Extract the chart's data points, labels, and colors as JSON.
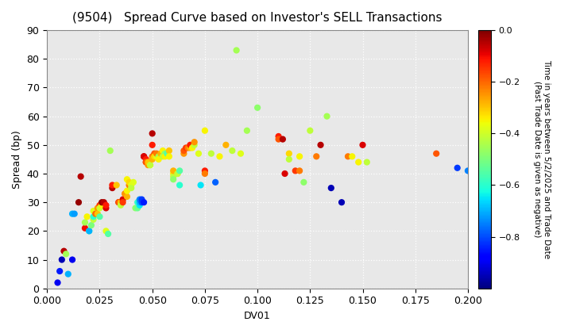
{
  "title": "(9504)   Spread Curve based on Investor's SELL Transactions",
  "xlabel": "DV01",
  "ylabel": "Spread (bp)",
  "xlim": [
    0.0,
    0.2
  ],
  "ylim": [
    0,
    90
  ],
  "xticks": [
    0.0,
    0.025,
    0.05,
    0.075,
    0.1,
    0.125,
    0.15,
    0.175,
    0.2
  ],
  "yticks": [
    0,
    10,
    20,
    30,
    40,
    50,
    60,
    70,
    80,
    90
  ],
  "colorbar_label_line1": "Time in years between 5/2/2025 and Trade Date",
  "colorbar_label_line2": "(Past Trade Date is given as negative)",
  "colorbar_vmin": -1.0,
  "colorbar_vmax": 0.0,
  "colorbar_ticks": [
    0.0,
    -0.2,
    -0.4,
    -0.6,
    -0.8
  ],
  "points": [
    [
      0.005,
      2,
      -0.9
    ],
    [
      0.006,
      6,
      -0.85
    ],
    [
      0.007,
      10,
      -0.95
    ],
    [
      0.008,
      13,
      -0.05
    ],
    [
      0.009,
      12,
      -0.45
    ],
    [
      0.01,
      5,
      -0.7
    ],
    [
      0.012,
      10,
      -0.9
    ],
    [
      0.012,
      26,
      -0.7
    ],
    [
      0.013,
      26,
      -0.72
    ],
    [
      0.015,
      30,
      -0.02
    ],
    [
      0.016,
      39,
      -0.05
    ],
    [
      0.018,
      21,
      -0.1
    ],
    [
      0.018,
      23,
      -0.45
    ],
    [
      0.019,
      25,
      -0.35
    ],
    [
      0.02,
      20,
      -0.55
    ],
    [
      0.02,
      20,
      -0.7
    ],
    [
      0.021,
      22,
      -0.5
    ],
    [
      0.022,
      24,
      -0.42
    ],
    [
      0.022,
      25,
      -0.6
    ],
    [
      0.022,
      27,
      -0.38
    ],
    [
      0.023,
      27,
      -0.38
    ],
    [
      0.023,
      26,
      -0.2
    ],
    [
      0.024,
      28,
      -0.25
    ],
    [
      0.024,
      26,
      -0.3
    ],
    [
      0.025,
      29,
      -0.15
    ],
    [
      0.025,
      28,
      -0.4
    ],
    [
      0.025,
      25,
      -0.55
    ],
    [
      0.026,
      29,
      -0.35
    ],
    [
      0.026,
      30,
      -0.02
    ],
    [
      0.027,
      30,
      -0.05
    ],
    [
      0.028,
      28,
      -0.08
    ],
    [
      0.028,
      29,
      -0.12
    ],
    [
      0.028,
      20,
      -0.38
    ],
    [
      0.029,
      19,
      -0.55
    ],
    [
      0.03,
      48,
      -0.45
    ],
    [
      0.031,
      35,
      -0.05
    ],
    [
      0.031,
      36,
      -0.12
    ],
    [
      0.033,
      36,
      -0.3
    ],
    [
      0.034,
      30,
      -0.08
    ],
    [
      0.034,
      30,
      -0.18
    ],
    [
      0.035,
      30,
      -0.22
    ],
    [
      0.035,
      30,
      -0.3
    ],
    [
      0.035,
      29,
      -0.42
    ],
    [
      0.036,
      31,
      -0.08
    ],
    [
      0.036,
      30,
      -0.15
    ],
    [
      0.037,
      33,
      -0.2
    ],
    [
      0.037,
      33,
      -0.25
    ],
    [
      0.038,
      32,
      -0.28
    ],
    [
      0.038,
      34,
      -0.35
    ],
    [
      0.038,
      38,
      -0.35
    ],
    [
      0.039,
      36,
      -0.22
    ],
    [
      0.039,
      37,
      -0.32
    ],
    [
      0.04,
      36,
      -0.38
    ],
    [
      0.04,
      35,
      -0.42
    ],
    [
      0.041,
      37,
      -0.38
    ],
    [
      0.042,
      28,
      -0.48
    ],
    [
      0.043,
      28,
      -0.52
    ],
    [
      0.043,
      30,
      -0.6
    ],
    [
      0.044,
      29,
      -0.65
    ],
    [
      0.044,
      30,
      -0.7
    ],
    [
      0.044,
      31,
      -0.75
    ],
    [
      0.045,
      30,
      -0.8
    ],
    [
      0.045,
      31,
      -0.82
    ],
    [
      0.046,
      30,
      -0.85
    ],
    [
      0.046,
      46,
      -0.05
    ],
    [
      0.046,
      46,
      -0.08
    ],
    [
      0.047,
      45,
      -0.12
    ],
    [
      0.047,
      44,
      -0.15
    ],
    [
      0.047,
      44,
      -0.18
    ],
    [
      0.048,
      43,
      -0.25
    ],
    [
      0.048,
      44,
      -0.3
    ],
    [
      0.049,
      43,
      -0.35
    ],
    [
      0.049,
      43,
      -0.42
    ],
    [
      0.05,
      50,
      -0.12
    ],
    [
      0.05,
      46,
      -0.22
    ],
    [
      0.05,
      45,
      -0.28
    ],
    [
      0.05,
      54,
      -0.05
    ],
    [
      0.051,
      47,
      -0.18
    ],
    [
      0.051,
      46,
      -0.32
    ],
    [
      0.052,
      46,
      -0.38
    ],
    [
      0.052,
      47,
      -0.22
    ],
    [
      0.053,
      46,
      -0.45
    ],
    [
      0.053,
      45,
      -0.35
    ],
    [
      0.054,
      47,
      -0.28
    ],
    [
      0.055,
      48,
      -0.35
    ],
    [
      0.055,
      46,
      -0.42
    ],
    [
      0.056,
      47,
      -0.48
    ],
    [
      0.056,
      46,
      -0.35
    ],
    [
      0.057,
      47,
      -0.55
    ],
    [
      0.058,
      48,
      -0.3
    ],
    [
      0.058,
      46,
      -0.35
    ],
    [
      0.06,
      40,
      -0.35
    ],
    [
      0.06,
      39,
      -0.42
    ],
    [
      0.06,
      38,
      -0.48
    ],
    [
      0.06,
      41,
      -0.28
    ],
    [
      0.062,
      40,
      -0.32
    ],
    [
      0.062,
      40,
      -0.42
    ],
    [
      0.063,
      41,
      -0.55
    ],
    [
      0.063,
      36,
      -0.6
    ],
    [
      0.065,
      47,
      -0.25
    ],
    [
      0.065,
      48,
      -0.18
    ],
    [
      0.066,
      49,
      -0.15
    ],
    [
      0.067,
      49,
      -0.22
    ],
    [
      0.068,
      49,
      -0.28
    ],
    [
      0.068,
      50,
      -0.12
    ],
    [
      0.069,
      49,
      -0.35
    ],
    [
      0.07,
      50,
      -0.42
    ],
    [
      0.07,
      51,
      -0.25
    ],
    [
      0.072,
      47,
      -0.38
    ],
    [
      0.073,
      36,
      -0.65
    ],
    [
      0.075,
      41,
      -0.12
    ],
    [
      0.075,
      40,
      -0.22
    ],
    [
      0.075,
      55,
      -0.35
    ],
    [
      0.078,
      47,
      -0.42
    ],
    [
      0.08,
      37,
      -0.78
    ],
    [
      0.082,
      46,
      -0.35
    ],
    [
      0.085,
      50,
      -0.28
    ],
    [
      0.088,
      48,
      -0.42
    ],
    [
      0.09,
      83,
      -0.45
    ],
    [
      0.092,
      47,
      -0.38
    ],
    [
      0.095,
      55,
      -0.45
    ],
    [
      0.1,
      63,
      -0.48
    ],
    [
      0.11,
      53,
      -0.12
    ],
    [
      0.11,
      52,
      -0.18
    ],
    [
      0.112,
      52,
      -0.05
    ],
    [
      0.113,
      40,
      -0.08
    ],
    [
      0.115,
      47,
      -0.32
    ],
    [
      0.115,
      45,
      -0.42
    ],
    [
      0.118,
      41,
      -0.15
    ],
    [
      0.12,
      41,
      -0.22
    ],
    [
      0.12,
      46,
      -0.35
    ],
    [
      0.122,
      37,
      -0.48
    ],
    [
      0.125,
      55,
      -0.42
    ],
    [
      0.128,
      46,
      -0.22
    ],
    [
      0.13,
      50,
      -0.05
    ],
    [
      0.133,
      60,
      -0.45
    ],
    [
      0.135,
      35,
      -0.95
    ],
    [
      0.14,
      30,
      -0.95
    ],
    [
      0.143,
      46,
      -0.22
    ],
    [
      0.145,
      46,
      -0.35
    ],
    [
      0.148,
      44,
      -0.35
    ],
    [
      0.15,
      50,
      -0.08
    ],
    [
      0.152,
      44,
      -0.42
    ],
    [
      0.185,
      47,
      -0.18
    ],
    [
      0.195,
      42,
      -0.82
    ],
    [
      0.2,
      41,
      -0.75
    ]
  ],
  "marker_size": 35,
  "plot_bg_color": "#e8e8e8",
  "fig_bg_color": "#ffffff",
  "grid_color": "#ffffff",
  "grid_linestyle": "dotted",
  "title_fontsize": 11,
  "axis_fontsize": 9,
  "label_fontsize": 9
}
